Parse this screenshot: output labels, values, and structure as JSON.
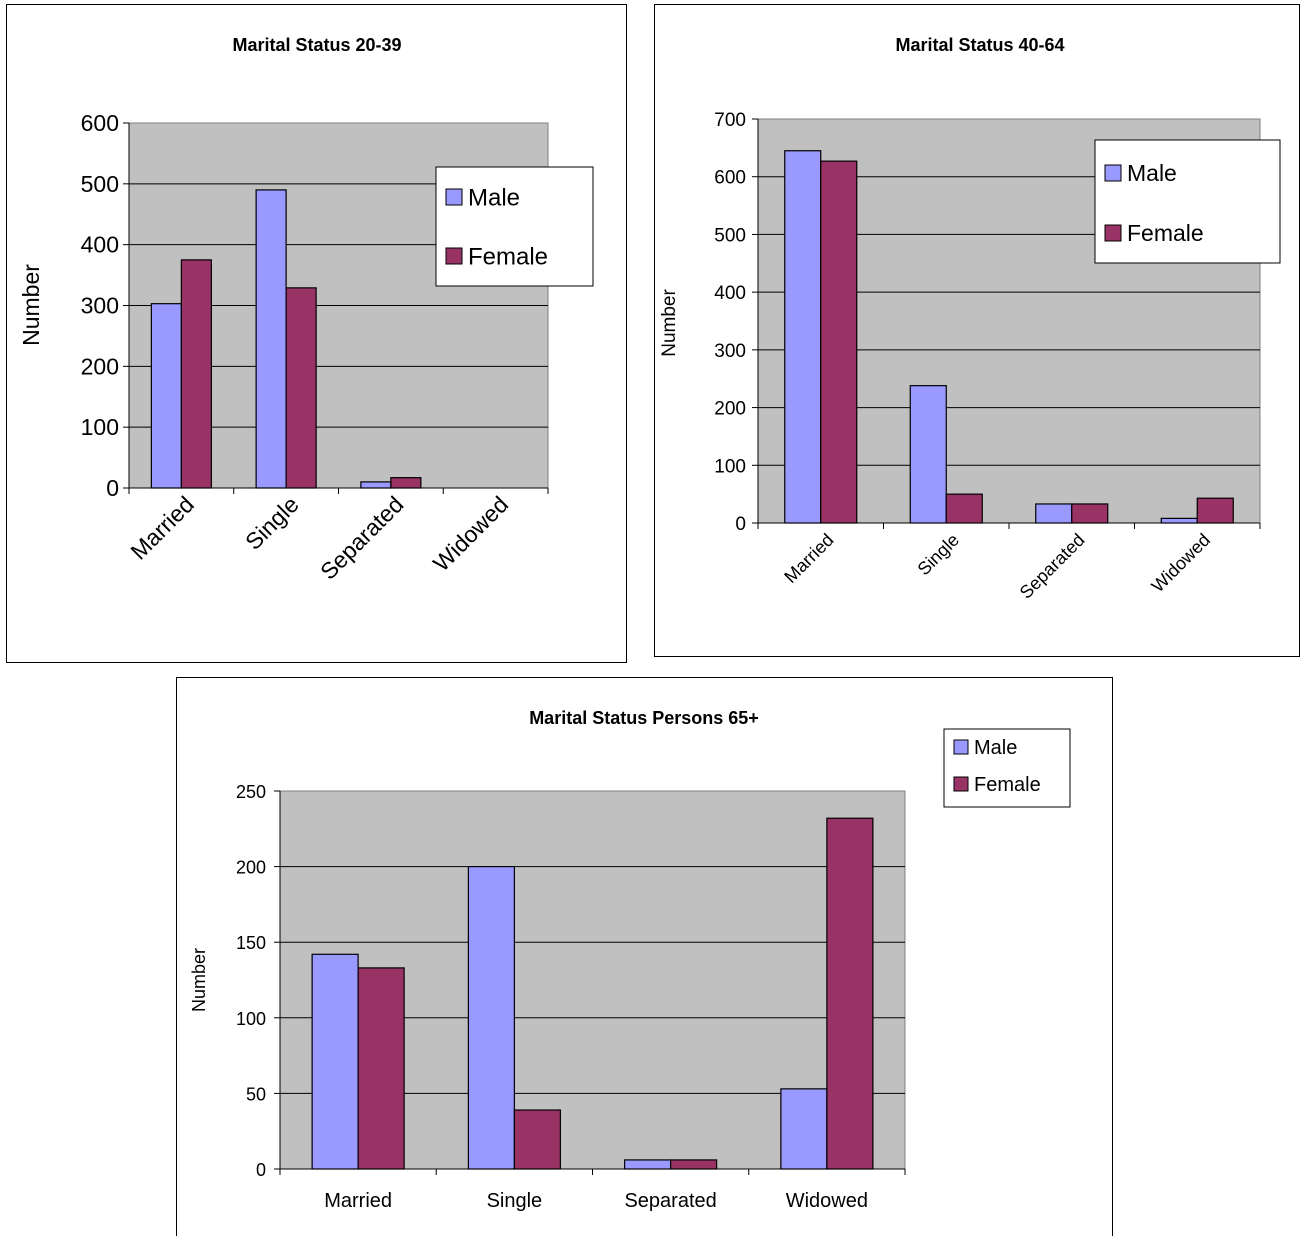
{
  "chart_data": [
    {
      "type": "bar",
      "title": "Marital Status 20-39",
      "xlabel": "",
      "ylabel": "Number",
      "categories": [
        "Married",
        "Single",
        "Separated",
        "Widowed"
      ],
      "yticks": [
        "0",
        "100",
        "200",
        "300",
        "400",
        "500",
        "600"
      ],
      "ylim": [
        0,
        600
      ],
      "grid": true,
      "legend_position": "right",
      "series": [
        {
          "name": "Male",
          "values": [
            303,
            490,
            10,
            0
          ],
          "color": "#9999ff"
        },
        {
          "name": "Female",
          "values": [
            375,
            329,
            17,
            0
          ],
          "color": "#993366"
        }
      ]
    },
    {
      "type": "bar",
      "title": "Marital Status 40-64",
      "xlabel": "",
      "ylabel": "Number",
      "categories": [
        "Married",
        "Single",
        "Separated",
        "Widowed"
      ],
      "yticks": [
        "0",
        "100",
        "200",
        "300",
        "400",
        "500",
        "600",
        "700"
      ],
      "ylim": [
        0,
        700
      ],
      "grid": true,
      "legend_position": "top-right",
      "series": [
        {
          "name": "Male",
          "values": [
            645,
            238,
            33,
            8
          ],
          "color": "#9999ff"
        },
        {
          "name": "Female",
          "values": [
            627,
            50,
            33,
            43
          ],
          "color": "#993366"
        }
      ]
    },
    {
      "type": "bar",
      "title": "Marital Status Persons 65+",
      "xlabel": "",
      "ylabel": "Number",
      "categories": [
        "Married",
        "Single",
        "Separated",
        "Widowed"
      ],
      "yticks": [
        "0",
        "50",
        "100",
        "150",
        "200",
        "250"
      ],
      "ylim": [
        0,
        250
      ],
      "grid": true,
      "legend_position": "top-right",
      "series": [
        {
          "name": "Male",
          "values": [
            142,
            200,
            6,
            53
          ],
          "color": "#9999ff"
        },
        {
          "name": "Female",
          "values": [
            133,
            39,
            6,
            232
          ],
          "color": "#993366"
        }
      ]
    }
  ]
}
